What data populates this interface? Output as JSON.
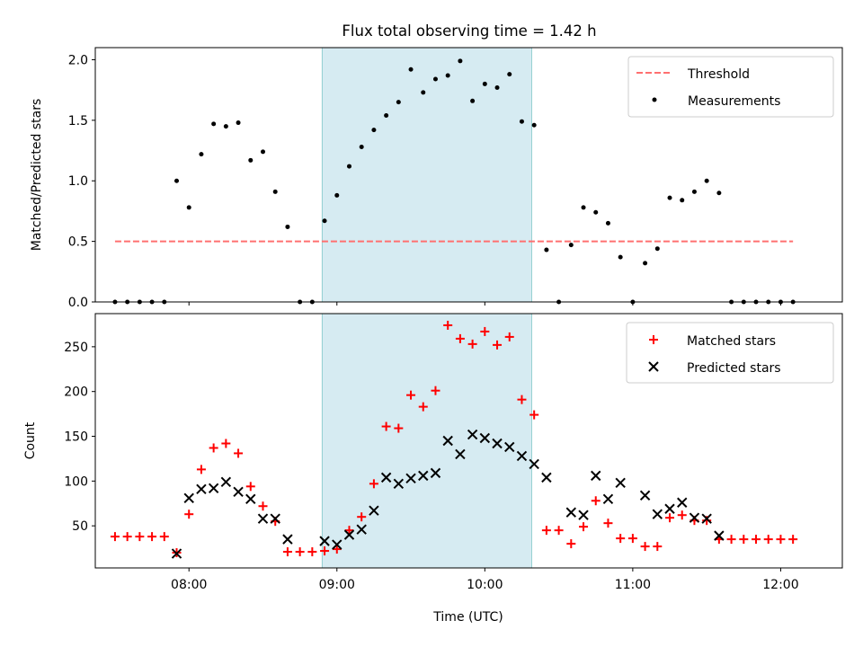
{
  "figure": {
    "title": "Flux total observing time = 1.42 h",
    "xlabel": "Time (UTC)"
  },
  "colors": {
    "threshold": "#ff7070",
    "measurements": "#000000",
    "matched": "#ff0000",
    "predicted": "#000000",
    "highlight": "#add8e6"
  },
  "chart_data": [
    {
      "type": "scatter",
      "ylabel": "Matched/Predicted stars",
      "xlim": [
        "07:22",
        "12:25"
      ],
      "ylim": [
        0,
        2.1
      ],
      "yticks": [
        0.0,
        0.5,
        1.0,
        1.5,
        2.0
      ],
      "ytick_labels": [
        "0.0",
        "0.5",
        "1.0",
        "1.5",
        "2.0"
      ],
      "xticks": [
        "08:00",
        "09:00",
        "10:00",
        "11:00",
        "12:00"
      ],
      "highlight_span": [
        "08:54",
        "10:19"
      ],
      "legend_position": "top-right",
      "series": [
        {
          "name": "Threshold",
          "kind": "dashed-line",
          "x": [
            "07:30",
            "12:05"
          ],
          "y": [
            0.5,
            0.5
          ]
        },
        {
          "name": "Measurements",
          "kind": "dot",
          "x": [
            "07:30",
            "07:35",
            "07:40",
            "07:45",
            "07:50",
            "07:55",
            "08:00",
            "08:05",
            "08:10",
            "08:15",
            "08:20",
            "08:25",
            "08:30",
            "08:35",
            "08:40",
            "08:45",
            "08:50",
            "08:55",
            "09:00",
            "09:05",
            "09:10",
            "09:15",
            "09:20",
            "09:25",
            "09:30",
            "09:35",
            "09:40",
            "09:45",
            "09:50",
            "09:55",
            "10:00",
            "10:05",
            "10:10",
            "10:15",
            "10:20",
            "10:25",
            "10:30",
            "10:35",
            "10:40",
            "10:45",
            "10:50",
            "10:55",
            "11:00",
            "11:05",
            "11:10",
            "11:15",
            "11:20",
            "11:25",
            "11:30",
            "11:35",
            "11:40",
            "11:45",
            "11:50",
            "11:55",
            "12:00",
            "12:05"
          ],
          "y": [
            0,
            0,
            0,
            0,
            0,
            1.0,
            0.78,
            1.22,
            1.47,
            1.45,
            1.48,
            1.17,
            1.24,
            0.91,
            0.62,
            0,
            0,
            0.67,
            0.88,
            1.12,
            1.28,
            1.42,
            1.54,
            1.65,
            1.92,
            1.73,
            1.84,
            1.87,
            1.99,
            1.66,
            1.8,
            1.77,
            1.88,
            1.49,
            1.46,
            0.43,
            0,
            0.47,
            0.78,
            0.74,
            0.65,
            0.37,
            0,
            0.32,
            0.44,
            0.86,
            0.84,
            0.91,
            1.0,
            0.9,
            0,
            0,
            0,
            0,
            0,
            0
          ]
        }
      ]
    },
    {
      "type": "scatter",
      "ylabel": "Count",
      "xlim": [
        "07:22",
        "12:25"
      ],
      "ylim": [
        3,
        287
      ],
      "yticks": [
        50,
        100,
        150,
        200,
        250
      ],
      "ytick_labels": [
        "50",
        "100",
        "150",
        "200",
        "250"
      ],
      "xticks": [
        "08:00",
        "09:00",
        "10:00",
        "11:00",
        "12:00"
      ],
      "xtick_labels": [
        "08:00",
        "09:00",
        "10:00",
        "11:00",
        "12:00"
      ],
      "highlight_span": [
        "08:54",
        "10:19"
      ],
      "legend_position": "top-right",
      "series": [
        {
          "name": "Matched stars",
          "kind": "plus",
          "x": [
            "07:30",
            "07:35",
            "07:40",
            "07:45",
            "07:50",
            "07:55",
            "08:00",
            "08:05",
            "08:10",
            "08:15",
            "08:20",
            "08:25",
            "08:30",
            "08:35",
            "08:40",
            "08:45",
            "08:50",
            "08:55",
            "09:00",
            "09:05",
            "09:10",
            "09:15",
            "09:20",
            "09:25",
            "09:30",
            "09:35",
            "09:40",
            "09:45",
            "09:50",
            "09:55",
            "10:00",
            "10:05",
            "10:10",
            "10:15",
            "10:20",
            "10:25",
            "10:30",
            "10:35",
            "10:40",
            "10:45",
            "10:50",
            "10:55",
            "11:00",
            "11:05",
            "11:10",
            "11:15",
            "11:20",
            "11:25",
            "11:30",
            "11:35",
            "11:40",
            "11:45",
            "11:50",
            "11:55",
            "12:00",
            "12:05"
          ],
          "y": [
            38,
            38,
            38,
            38,
            38,
            20,
            63,
            113,
            137,
            142,
            131,
            94,
            72,
            55,
            21,
            21,
            21,
            22,
            24,
            45,
            60,
            97,
            161,
            159,
            196,
            183,
            201,
            274,
            259,
            253,
            267,
            252,
            261,
            191,
            174,
            45,
            45,
            30,
            49,
            78,
            53,
            36,
            36,
            27,
            27,
            59,
            62,
            56,
            56,
            35,
            35,
            35,
            35,
            35,
            35,
            35
          ]
        },
        {
          "name": "Predicted stars",
          "kind": "cross",
          "x": [
            "07:55",
            "08:00",
            "08:05",
            "08:10",
            "08:15",
            "08:20",
            "08:25",
            "08:30",
            "08:35",
            "08:40",
            "08:55",
            "09:00",
            "09:05",
            "09:10",
            "09:15",
            "09:20",
            "09:25",
            "09:30",
            "09:35",
            "09:40",
            "09:45",
            "09:50",
            "09:55",
            "10:00",
            "10:05",
            "10:10",
            "10:15",
            "10:20",
            "10:25",
            "10:35",
            "10:40",
            "10:45",
            "10:50",
            "10:55",
            "11:05",
            "11:10",
            "11:15",
            "11:20",
            "11:25",
            "11:30",
            "11:35"
          ],
          "y": [
            19,
            81,
            91,
            92,
            99,
            88,
            80,
            58,
            58,
            35,
            33,
            29,
            40,
            46,
            67,
            104,
            97,
            103,
            106,
            109,
            145,
            130,
            152,
            148,
            142,
            138,
            128,
            119,
            104,
            65,
            62,
            106,
            80,
            98,
            84,
            63,
            69,
            76,
            59,
            58,
            39
          ]
        }
      ]
    }
  ]
}
